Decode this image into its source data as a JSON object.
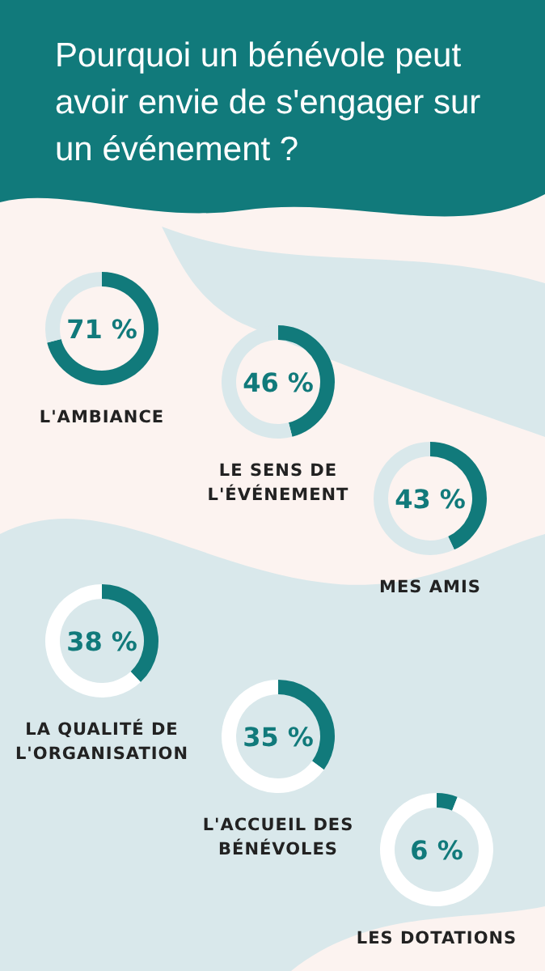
{
  "chart_data": [
    {
      "type": "other",
      "title": "Pourquoi un bénévole peut avoir envie de s'engager sur un événement ?"
    },
    {
      "type": "donut",
      "title": "L'AMBIANCE",
      "categories": [
        null,
        null
      ],
      "values": [
        71,
        29
      ],
      "colors": [
        "#117a7b",
        "#d9e8eb"
      ],
      "annotations": [
        "71 %"
      ]
    },
    {
      "type": "donut",
      "title": "LE SENS DE L'ÉVÉNEMENT",
      "categories": [
        null,
        null
      ],
      "values": [
        46,
        54
      ],
      "colors": [
        "#117a7b",
        "#d9e8eb"
      ],
      "annotations": [
        "46 %"
      ]
    },
    {
      "type": "donut",
      "title": "MES AMIS",
      "categories": [
        null,
        null
      ],
      "values": [
        43,
        57
      ],
      "colors": [
        "#117a7b",
        "#d9e8eb"
      ],
      "annotations": [
        "43 %"
      ]
    },
    {
      "type": "donut",
      "title": "LA QUALITÉ DE L'ORGANISATION",
      "categories": [
        null,
        null
      ],
      "values": [
        38,
        62
      ],
      "colors": [
        "#117a7b",
        "#ffffff"
      ],
      "annotations": [
        "38 %"
      ]
    },
    {
      "type": "donut",
      "title": "L'ACCUEIL DES BÉNÉVOLES",
      "categories": [
        null,
        null
      ],
      "values": [
        35,
        65
      ],
      "colors": [
        "#117a7b",
        "#ffffff"
      ],
      "annotations": [
        "35 %"
      ]
    },
    {
      "type": "donut",
      "title": "LES DOTATIONS",
      "categories": [
        null,
        null
      ],
      "values": [
        6,
        94
      ],
      "colors": [
        "#117a7b",
        "#ffffff"
      ],
      "annotations": [
        "6 %"
      ]
    }
  ]
}
